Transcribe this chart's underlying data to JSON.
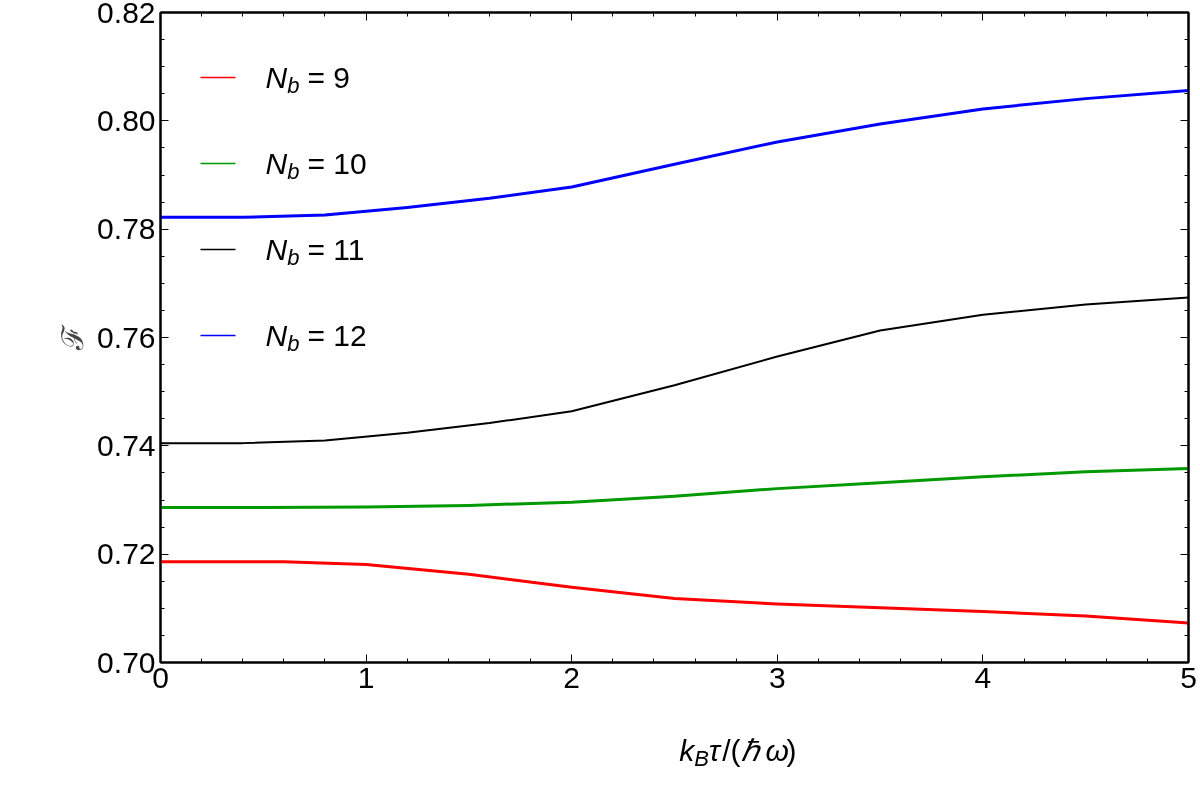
{
  "chart_data": {
    "type": "line",
    "xlabel": "k$_{B}$τ/(ℏ ω)",
    "ylabel": "ℱ",
    "xlim": [
      0,
      5
    ],
    "ylim": [
      0.7,
      0.82
    ],
    "xticks": [
      0,
      1,
      2,
      3,
      4,
      5
    ],
    "yticks": [
      {
        "value": 0.7,
        "label": "0.70"
      },
      0.72,
      0.74,
      0.76,
      0.78,
      {
        "value": 0.8,
        "label": "0.80"
      },
      0.82
    ],
    "grid": false,
    "legend": "top left",
    "line_style": "solid",
    "marker": "none",
    "series": [
      {
        "name": "N$_{b}$ = 9",
        "color": "#ff0000",
        "x": [
          0,
          0.3,
          0.6,
          1,
          1.5,
          2,
          2.5,
          3,
          3.5,
          4,
          4.5,
          5
        ],
        "values": [
          0.7186,
          0.7186,
          0.7186,
          0.7181,
          0.7163,
          0.7139,
          0.7118,
          0.7108,
          0.7101,
          0.7094,
          0.7086,
          0.7073
        ]
      },
      {
        "name": "N$_{b}$ = 10",
        "color": "#009900",
        "x": [
          0,
          0.5,
          1,
          1.5,
          2,
          2.5,
          3,
          3.5,
          4,
          4.5,
          5
        ],
        "values": [
          0.7286,
          0.7286,
          0.7287,
          0.729,
          0.7296,
          0.7307,
          0.7321,
          0.7332,
          0.7343,
          0.7352,
          0.7358
        ]
      },
      {
        "name": "N$_{b}$ = 11",
        "color": "#000000",
        "x": [
          0,
          0.4,
          0.8,
          1.2,
          1.6,
          2,
          2.5,
          3,
          3.5,
          4,
          4.5,
          5
        ],
        "values": [
          0.7405,
          0.7405,
          0.741,
          0.7424,
          0.7442,
          0.7464,
          0.7512,
          0.7565,
          0.7613,
          0.7642,
          0.7661,
          0.7674
        ]
      },
      {
        "name": "N$_{b}$ = 12",
        "color": "#0000ff",
        "x": [
          0,
          0.4,
          0.8,
          1.2,
          1.6,
          2,
          2.5,
          3,
          3.5,
          4,
          4.5,
          5
        ],
        "values": [
          0.7822,
          0.7822,
          0.7826,
          0.784,
          0.7857,
          0.7878,
          0.792,
          0.7961,
          0.7994,
          0.8022,
          0.8041,
          0.8056
        ]
      }
    ]
  }
}
